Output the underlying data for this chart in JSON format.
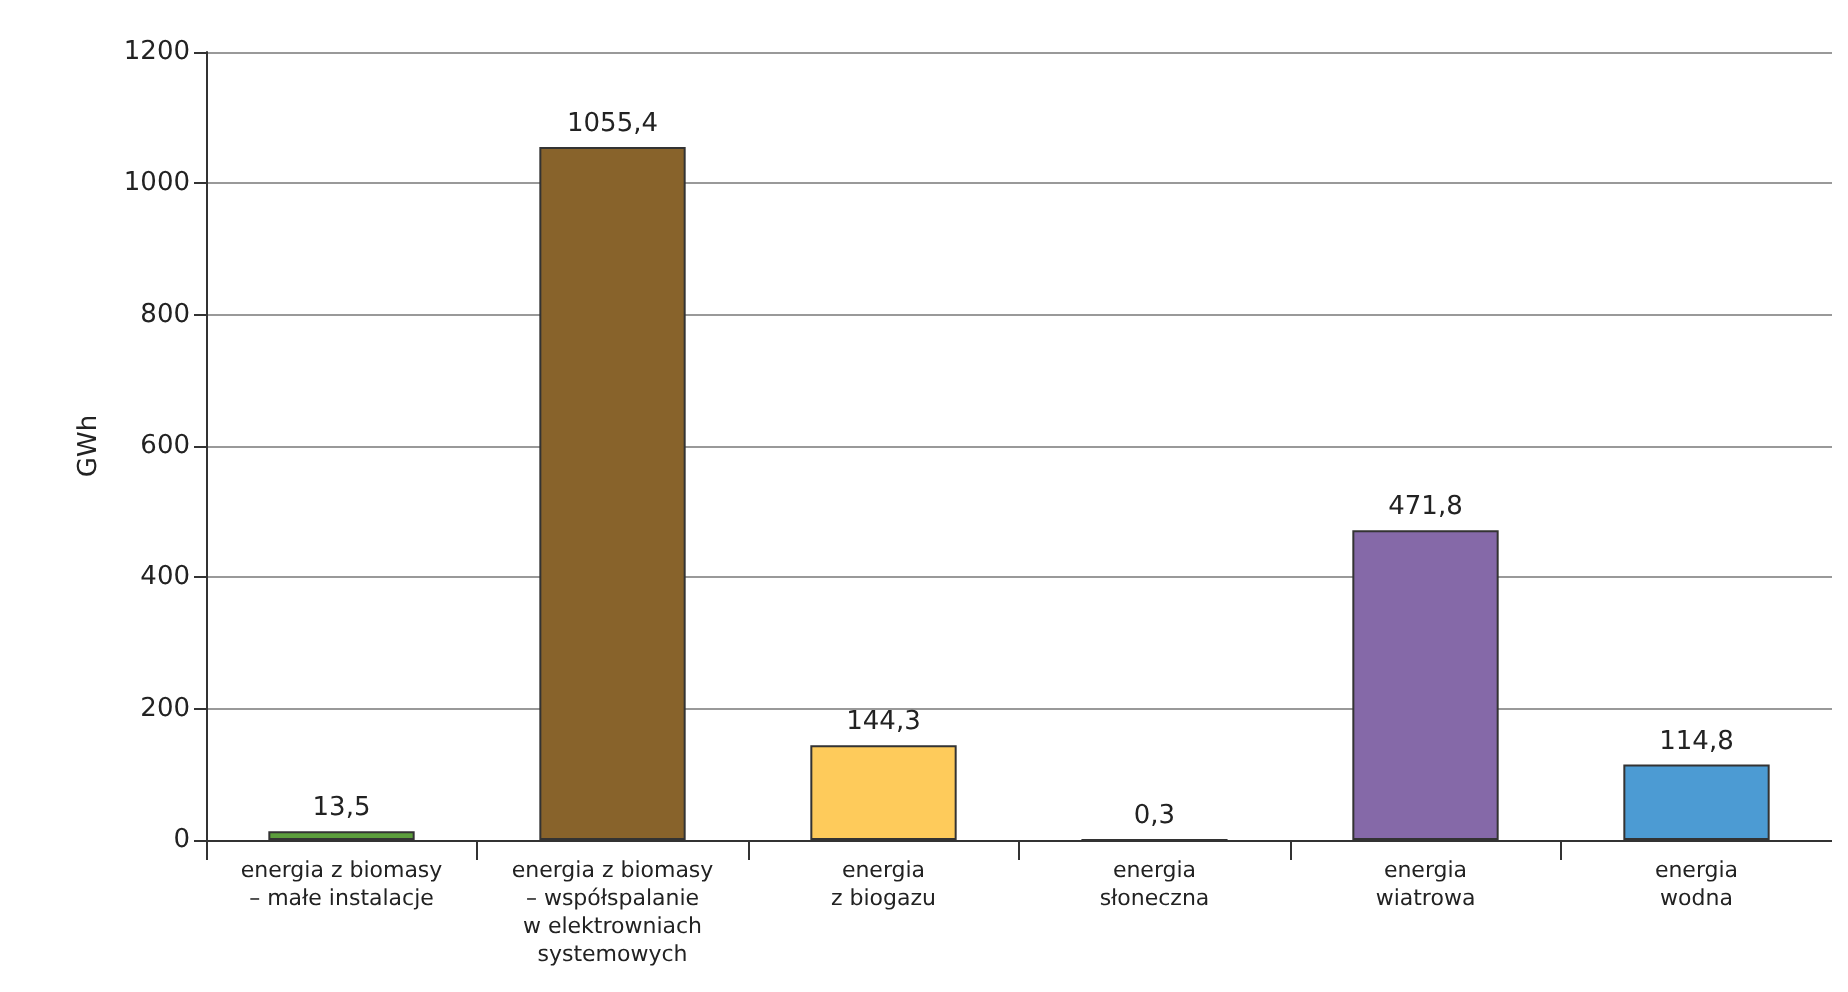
{
  "chart_data": {
    "type": "bar",
    "ylabel": "GWh",
    "categories": [
      "energia z biomasy\n– małe instalacje",
      "energia z biomasy\n– współspalanie\nw elektrowniach\nsystemowych",
      "energia\nz biogazu",
      "energia\nsłoneczna",
      "energia\nwiatrowa",
      "energia\nwodna"
    ],
    "values": [
      13.5,
      1055.4,
      144.3,
      0.3,
      471.8,
      114.8
    ],
    "colors": [
      "#5c9e3c",
      "#88632b",
      "#fecb5b",
      "#fff000",
      "#8569a8",
      "#4c9bd3"
    ],
    "value_labels": [
      "13,5",
      "1055,4",
      "144,3",
      "0,3",
      "471,8",
      "114,8"
    ],
    "ylim": [
      0,
      1200
    ],
    "yticks": [
      0,
      200,
      400,
      600,
      800,
      1000,
      1200
    ],
    "grid": "y"
  }
}
